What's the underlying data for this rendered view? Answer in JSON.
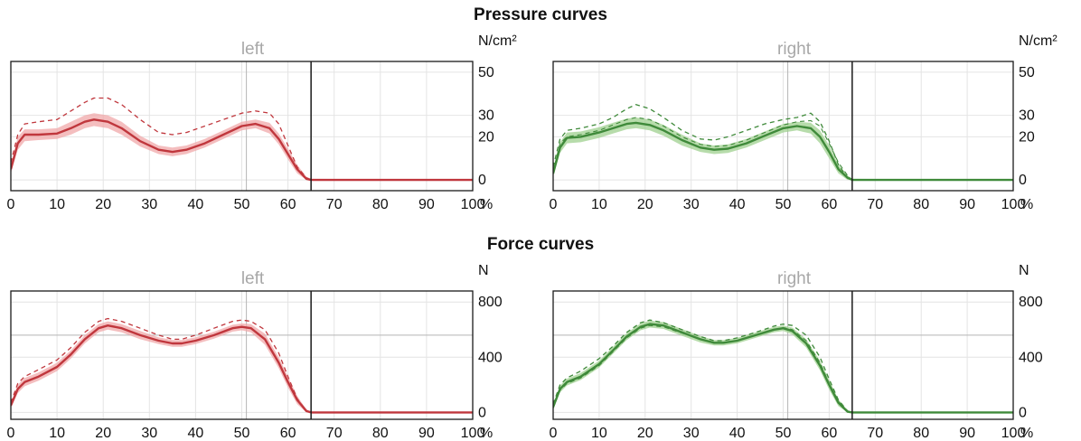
{
  "titles": {
    "pressure": "Pressure curves",
    "force": "Force curves"
  },
  "colors": {
    "left": "#c0373d",
    "left_band": "#f0a8aa",
    "right": "#3f8a3a",
    "right_band": "#9fd08f"
  },
  "chart_data": [
    {
      "type": "line",
      "group": "Pressure curves",
      "title": "left",
      "unit": "N/cm²",
      "xlabel": "%",
      "xlim": [
        0,
        100
      ],
      "ylim": [
        -5,
        55
      ],
      "xticks": [
        0,
        10,
        20,
        30,
        40,
        50,
        60,
        70,
        80,
        90,
        100
      ],
      "yticks": [
        0,
        20,
        30,
        50
      ],
      "grid": true,
      "divider_x": 65,
      "ref_line_x": 51,
      "color": "left",
      "x": [
        0,
        1.5,
        3,
        6,
        10,
        13,
        16,
        18,
        21,
        24,
        28,
        32,
        35,
        38,
        42,
        46,
        50,
        53,
        56,
        58,
        60,
        62,
        64,
        65,
        100
      ],
      "mean": [
        5,
        17,
        21,
        21,
        21.5,
        24,
        27,
        28,
        27,
        24,
        18,
        14,
        13,
        14,
        17,
        21,
        25,
        26,
        24,
        19,
        12,
        5,
        0.5,
        0,
        0
      ],
      "lower": [
        3,
        14,
        18,
        18.5,
        19,
        21,
        24,
        25,
        24,
        21,
        15.5,
        12,
        11,
        12,
        15,
        19,
        23,
        24,
        21.5,
        16.5,
        9.5,
        3,
        0,
        0,
        0
      ],
      "upper": [
        7,
        20,
        23.5,
        23.5,
        24,
        27,
        30,
        31,
        30,
        27,
        20.5,
        16,
        15,
        16,
        19,
        23,
        27,
        28,
        26.5,
        21.5,
        14.5,
        7,
        1.5,
        0.5,
        0
      ],
      "dashed": [
        8,
        21,
        26,
        27,
        28,
        32,
        36,
        38,
        38,
        35,
        28,
        22,
        21,
        22,
        25,
        28,
        31,
        32,
        31,
        26,
        16,
        6,
        1,
        0,
        0
      ]
    },
    {
      "type": "line",
      "group": "Pressure curves",
      "title": "right",
      "unit": "N/cm²",
      "xlabel": "%",
      "xlim": [
        0,
        100
      ],
      "ylim": [
        -5,
        55
      ],
      "xticks": [
        0,
        10,
        20,
        30,
        40,
        50,
        60,
        70,
        80,
        90,
        100
      ],
      "yticks": [
        0,
        20,
        30,
        50
      ],
      "grid": true,
      "divider_x": 65,
      "ref_line_x": 51,
      "color": "right",
      "x": [
        0,
        1.5,
        3,
        6,
        10,
        13,
        16,
        18,
        21,
        24,
        28,
        32,
        35,
        38,
        42,
        46,
        50,
        53,
        56,
        58,
        60,
        62,
        64,
        65,
        100
      ],
      "mean": [
        3,
        15,
        19.5,
        20,
        22,
        24,
        26,
        26.5,
        25.5,
        23,
        18.5,
        15,
        14,
        14.5,
        17,
        20.5,
        24,
        25,
        24,
        20,
        13,
        5,
        1,
        0,
        0
      ],
      "lower": [
        1.5,
        12.5,
        17,
        17.5,
        19.5,
        21.5,
        23.5,
        24,
        23,
        20.5,
        16,
        13,
        12,
        12.5,
        15,
        18.5,
        22,
        23,
        21.5,
        17,
        10,
        3,
        0,
        0,
        0
      ],
      "upper": [
        5,
        17.5,
        22,
        22.5,
        24.5,
        26.5,
        28.5,
        29,
        28,
        25.5,
        21,
        17,
        16,
        16.5,
        19,
        22.5,
        26,
        27,
        26.5,
        23,
        16,
        7,
        2,
        0.5,
        0
      ],
      "dashed": [
        6,
        19,
        23,
        24,
        26,
        29,
        33,
        35,
        33,
        29,
        23,
        19,
        18.5,
        20,
        23,
        26,
        28,
        29,
        31,
        27,
        18,
        7,
        1,
        0,
        0
      ],
      "dashed2": [
        4,
        17,
        20,
        21,
        23,
        25.5,
        28,
        29,
        28,
        25,
        20,
        16.5,
        15.5,
        16,
        18.5,
        22,
        25.5,
        27,
        27.5,
        25,
        17,
        8,
        2,
        0,
        0
      ]
    },
    {
      "type": "line",
      "group": "Force curves",
      "title": "left",
      "unit": "N",
      "xlabel": "%",
      "xlim": [
        0,
        100
      ],
      "ylim": [
        -50,
        880
      ],
      "xticks": [
        0,
        10,
        20,
        30,
        40,
        50,
        60,
        70,
        80,
        90,
        100
      ],
      "yticks": [
        0,
        400,
        800
      ],
      "grid": true,
      "divider_x": 65,
      "ref_line_x": 51,
      "ref_line_y": 560,
      "color": "left",
      "x": [
        0,
        1.5,
        3,
        6,
        10,
        13,
        16,
        19,
        21,
        24,
        28,
        32,
        35,
        37,
        40,
        44,
        48,
        50,
        52,
        55,
        58,
        60,
        62,
        64,
        65,
        100
      ],
      "mean": [
        50,
        170,
        220,
        260,
        330,
        420,
        530,
        610,
        630,
        610,
        560,
        520,
        500,
        500,
        520,
        560,
        610,
        620,
        610,
        530,
        360,
        220,
        90,
        10,
        0,
        0
      ],
      "lower": [
        30,
        140,
        190,
        230,
        300,
        390,
        500,
        580,
        600,
        580,
        530,
        495,
        475,
        475,
        495,
        535,
        585,
        595,
        580,
        490,
        320,
        180,
        60,
        0,
        0,
        0
      ],
      "upper": [
        70,
        200,
        250,
        290,
        360,
        450,
        560,
        640,
        660,
        640,
        590,
        545,
        525,
        525,
        545,
        585,
        635,
        645,
        640,
        570,
        400,
        260,
        120,
        20,
        0,
        0
      ],
      "dashed": [
        70,
        210,
        260,
        310,
        380,
        470,
        580,
        660,
        680,
        660,
        610,
        560,
        530,
        530,
        560,
        610,
        660,
        670,
        660,
        600,
        430,
        260,
        100,
        10,
        0,
        0
      ]
    },
    {
      "type": "line",
      "group": "Force curves",
      "title": "right",
      "unit": "N",
      "xlabel": "%",
      "xlim": [
        0,
        100
      ],
      "ylim": [
        -50,
        880
      ],
      "xticks": [
        0,
        10,
        20,
        30,
        40,
        50,
        60,
        70,
        80,
        90,
        100
      ],
      "yticks": [
        0,
        400,
        800
      ],
      "grid": true,
      "divider_x": 65,
      "ref_line_x": 51,
      "ref_line_y": 560,
      "color": "right",
      "x": [
        0,
        1.5,
        3,
        6,
        10,
        13,
        16,
        19,
        21,
        24,
        28,
        32,
        35,
        37,
        40,
        44,
        48,
        50,
        52,
        55,
        58,
        60,
        62,
        64,
        65,
        100
      ],
      "mean": [
        40,
        170,
        220,
        260,
        350,
        450,
        550,
        620,
        640,
        630,
        580,
        530,
        505,
        505,
        520,
        560,
        600,
        610,
        590,
        500,
        340,
        200,
        70,
        5,
        0,
        0
      ],
      "lower": [
        20,
        145,
        195,
        235,
        325,
        425,
        525,
        595,
        615,
        605,
        555,
        507,
        485,
        485,
        500,
        540,
        580,
        590,
        565,
        470,
        305,
        165,
        45,
        0,
        0,
        0
      ],
      "upper": [
        60,
        195,
        245,
        285,
        375,
        475,
        575,
        645,
        665,
        655,
        605,
        553,
        525,
        525,
        540,
        580,
        620,
        630,
        615,
        530,
        375,
        235,
        95,
        15,
        0,
        0
      ],
      "dashed": [
        60,
        200,
        250,
        300,
        390,
        480,
        580,
        650,
        670,
        650,
        600,
        550,
        520,
        520,
        540,
        580,
        625,
        640,
        630,
        560,
        400,
        240,
        90,
        10,
        0,
        0
      ],
      "dashed2": [
        30,
        160,
        210,
        250,
        340,
        440,
        540,
        610,
        630,
        620,
        575,
        530,
        505,
        505,
        520,
        560,
        600,
        615,
        600,
        520,
        360,
        210,
        80,
        5,
        0,
        0
      ]
    }
  ]
}
